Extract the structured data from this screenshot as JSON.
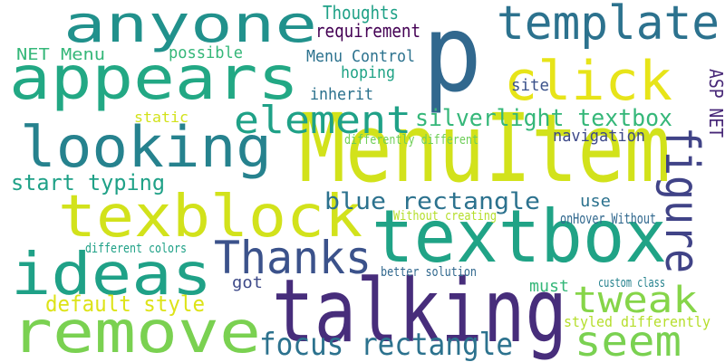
{
  "words": [
    {
      "text": "p",
      "color": "#31688e"
    },
    {
      "text": "anyone",
      "color": "#21918c"
    },
    {
      "text": "appears",
      "color": "#22a884"
    },
    {
      "text": "click",
      "color": "#e7e419"
    },
    {
      "text": "template",
      "color": "#2c728e"
    },
    {
      "text": "MenuItem",
      "color": "#d2e21b"
    },
    {
      "text": "looking",
      "color": "#26828e"
    },
    {
      "text": "element",
      "color": "#1fa187"
    },
    {
      "text": "textbox",
      "color": "#20a386"
    },
    {
      "text": "texblock",
      "color": "#d2e21b"
    },
    {
      "text": "ideas",
      "color": "#1fa187"
    },
    {
      "text": "talking",
      "color": "#472d7b"
    },
    {
      "text": "remove",
      "color": "#7ad151"
    },
    {
      "text": "figure",
      "color": "#404387"
    },
    {
      "text": "Thanks",
      "color": "#3b528b"
    },
    {
      "text": "tweak",
      "color": "#86d549"
    },
    {
      "text": "seem",
      "color": "#7ad151"
    },
    {
      "text": "focus rectangle",
      "color": "#2c728e"
    },
    {
      "text": "silverlight textbox",
      "color": "#35b779"
    },
    {
      "text": "blue rectangle",
      "color": "#2c728e"
    },
    {
      "text": "start typing",
      "color": "#1fa187"
    },
    {
      "text": "default style",
      "color": "#dde318"
    },
    {
      "text": "Thoughts",
      "color": "#1fa187"
    },
    {
      "text": "requirement",
      "color": "#440154"
    },
    {
      "text": "NET Menu",
      "color": "#35b779"
    },
    {
      "text": "possible",
      "color": "#35b779"
    },
    {
      "text": "Menu Control",
      "color": "#2c728e"
    },
    {
      "text": "hoping",
      "color": "#20a386"
    },
    {
      "text": "inherit",
      "color": "#2c728e"
    },
    {
      "text": "site",
      "color": "#3b528b"
    },
    {
      "text": "ASP NET",
      "color": "#482878"
    },
    {
      "text": "static",
      "color": "#d2e21b"
    },
    {
      "text": "navigation",
      "color": "#3e4a89"
    },
    {
      "text": "differently different",
      "color": "#6ece58"
    },
    {
      "text": "use",
      "color": "#2c728e"
    },
    {
      "text": "Without creating",
      "color": "#b5de2b"
    },
    {
      "text": "onHover Without",
      "color": "#31688e"
    },
    {
      "text": "different colors",
      "color": "#1fa187"
    },
    {
      "text": "better solution",
      "color": "#31688e"
    },
    {
      "text": "custom class",
      "color": "#26828e"
    },
    {
      "text": "got",
      "color": "#3e4a89"
    },
    {
      "text": "must",
      "color": "#35b779"
    },
    {
      "text": "styled differently",
      "color": "#b5de2b"
    }
  ]
}
